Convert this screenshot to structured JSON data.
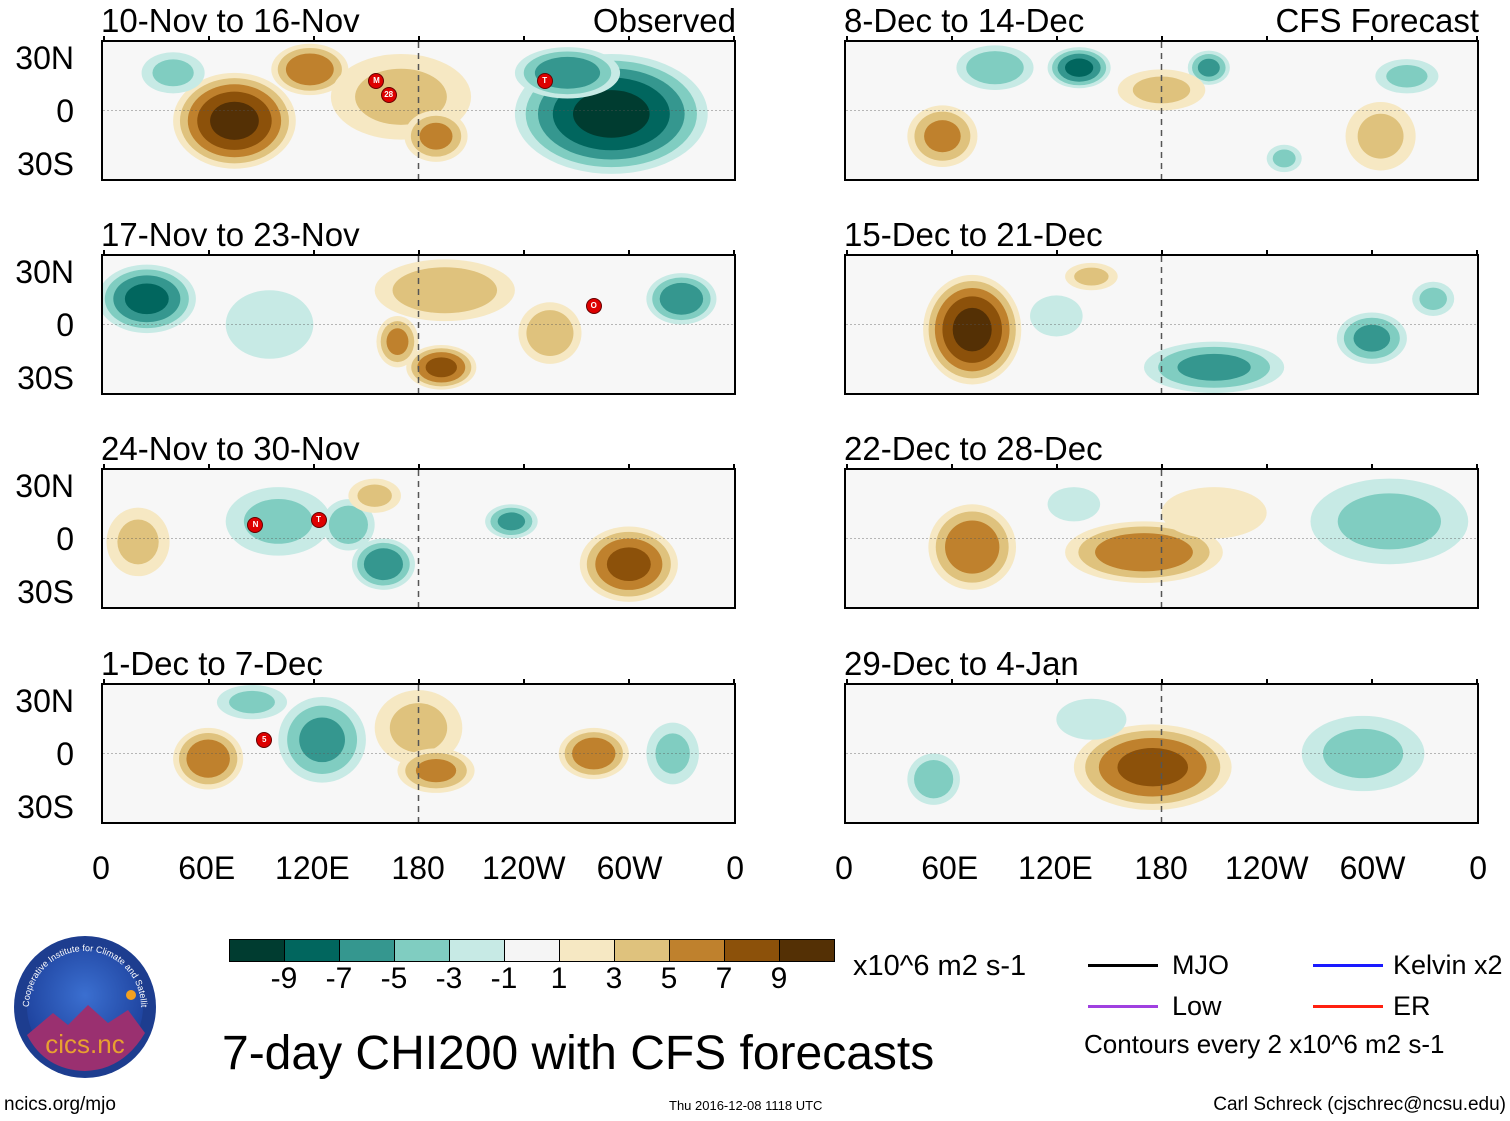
{
  "left_column": {
    "header_right": "Observed",
    "panels": [
      {
        "title": "10-Nov to 16-Nov",
        "storms": [
          {
            "label": "M",
            "lon": 156,
            "lat": 17
          },
          {
            "label": "28",
            "lon": 163,
            "lat": 9
          },
          {
            "label": "T",
            "lon": 252,
            "lat": 17
          }
        ],
        "anomalies": [
          {
            "lon": 75,
            "lat": -6,
            "value": 9,
            "rx": 35,
            "ry": 28
          },
          {
            "lon": 118,
            "lat": 24,
            "value": 6,
            "rx": 22,
            "ry": 15
          },
          {
            "lon": 170,
            "lat": 8,
            "value": 3,
            "rx": 40,
            "ry": 25
          },
          {
            "lon": 190,
            "lat": -15,
            "value": 5,
            "rx": 18,
            "ry": 15
          },
          {
            "lon": 290,
            "lat": -2,
            "value": -9,
            "rx": 55,
            "ry": 35
          },
          {
            "lon": 265,
            "lat": 22,
            "value": -6,
            "rx": 30,
            "ry": 15
          },
          {
            "lon": 40,
            "lat": 22,
            "value": -3,
            "rx": 18,
            "ry": 12
          }
        ]
      },
      {
        "title": "17-Nov to 23-Nov",
        "storms": [
          {
            "label": "O",
            "lon": 280,
            "lat": 11
          }
        ],
        "anomalies": [
          {
            "lon": 25,
            "lat": 15,
            "value": -7,
            "rx": 28,
            "ry": 20
          },
          {
            "lon": 195,
            "lat": 20,
            "value": 4,
            "rx": 40,
            "ry": 18
          },
          {
            "lon": 193,
            "lat": -25,
            "value": 7,
            "rx": 20,
            "ry": 13
          },
          {
            "lon": 168,
            "lat": -10,
            "value": 5,
            "rx": 12,
            "ry": 15
          },
          {
            "lon": 255,
            "lat": -5,
            "value": 4,
            "rx": 18,
            "ry": 18
          },
          {
            "lon": 330,
            "lat": 15,
            "value": -6,
            "rx": 20,
            "ry": 15
          },
          {
            "lon": 95,
            "lat": 0,
            "value": -2,
            "rx": 25,
            "ry": 20
          }
        ]
      },
      {
        "title": "24-Nov to 30-Nov",
        "storms": [
          {
            "label": "N",
            "lon": 87,
            "lat": 8
          },
          {
            "label": "T",
            "lon": 123,
            "lat": 11
          }
        ],
        "anomalies": [
          {
            "lon": 20,
            "lat": -2,
            "value": 3,
            "rx": 18,
            "ry": 20
          },
          {
            "lon": 100,
            "lat": 10,
            "value": -3,
            "rx": 30,
            "ry": 20
          },
          {
            "lon": 160,
            "lat": -15,
            "value": -6,
            "rx": 18,
            "ry": 15
          },
          {
            "lon": 140,
            "lat": 8,
            "value": -4,
            "rx": 15,
            "ry": 15
          },
          {
            "lon": 233,
            "lat": 10,
            "value": -5,
            "rx": 15,
            "ry": 10
          },
          {
            "lon": 300,
            "lat": -15,
            "value": 7,
            "rx": 28,
            "ry": 22
          },
          {
            "lon": 155,
            "lat": 25,
            "value": 3,
            "rx": 15,
            "ry": 10
          }
        ]
      },
      {
        "title": "1-Dec to 7-Dec",
        "storms": [
          {
            "label": "5",
            "lon": 92,
            "lat": 8
          }
        ],
        "anomalies": [
          {
            "lon": 60,
            "lat": -3,
            "value": 6,
            "rx": 20,
            "ry": 18
          },
          {
            "lon": 125,
            "lat": 8,
            "value": -5,
            "rx": 25,
            "ry": 25
          },
          {
            "lon": 180,
            "lat": 15,
            "value": 3,
            "rx": 25,
            "ry": 22
          },
          {
            "lon": 190,
            "lat": -10,
            "value": 5,
            "rx": 22,
            "ry": 13
          },
          {
            "lon": 280,
            "lat": 0,
            "value": 6,
            "rx": 20,
            "ry": 15
          },
          {
            "lon": 325,
            "lat": 0,
            "value": -3,
            "rx": 15,
            "ry": 18
          },
          {
            "lon": 85,
            "lat": 30,
            "value": -3,
            "rx": 20,
            "ry": 10
          }
        ]
      }
    ]
  },
  "right_column": {
    "header_right": "CFS Forecast",
    "panels": [
      {
        "title": "8-Dec to 14-Dec",
        "storms": [],
        "anomalies": [
          {
            "lon": 85,
            "lat": 25,
            "value": -4,
            "rx": 22,
            "ry": 13
          },
          {
            "lon": 133,
            "lat": 25,
            "value": -7,
            "rx": 18,
            "ry": 12
          },
          {
            "lon": 207,
            "lat": 25,
            "value": -5,
            "rx": 12,
            "ry": 10
          },
          {
            "lon": 55,
            "lat": -15,
            "value": 5,
            "rx": 20,
            "ry": 18
          },
          {
            "lon": 180,
            "lat": 12,
            "value": 3,
            "rx": 25,
            "ry": 12
          },
          {
            "lon": 305,
            "lat": -15,
            "value": 3,
            "rx": 20,
            "ry": 20
          },
          {
            "lon": 320,
            "lat": 20,
            "value": -3,
            "rx": 18,
            "ry": 10
          },
          {
            "lon": 250,
            "lat": -28,
            "value": -3,
            "rx": 10,
            "ry": 8
          }
        ]
      },
      {
        "title": "15-Dec to 21-Dec",
        "storms": [],
        "anomalies": [
          {
            "lon": 72,
            "lat": -3,
            "value": 9,
            "rx": 28,
            "ry": 32
          },
          {
            "lon": 210,
            "lat": -25,
            "value": -5,
            "rx": 40,
            "ry": 15
          },
          {
            "lon": 300,
            "lat": -8,
            "value": -5,
            "rx": 20,
            "ry": 15
          },
          {
            "lon": 120,
            "lat": 5,
            "value": -2,
            "rx": 15,
            "ry": 12
          },
          {
            "lon": 335,
            "lat": 15,
            "value": -3,
            "rx": 12,
            "ry": 10
          },
          {
            "lon": 140,
            "lat": 28,
            "value": 3,
            "rx": 15,
            "ry": 8
          }
        ]
      },
      {
        "title": "22-Dec to 28-Dec",
        "storms": [],
        "anomalies": [
          {
            "lon": 72,
            "lat": -5,
            "value": 6,
            "rx": 25,
            "ry": 25
          },
          {
            "lon": 170,
            "lat": -8,
            "value": 6,
            "rx": 45,
            "ry": 18
          },
          {
            "lon": 310,
            "lat": 10,
            "value": -3,
            "rx": 45,
            "ry": 25
          },
          {
            "lon": 210,
            "lat": 15,
            "value": 2,
            "rx": 30,
            "ry": 15
          },
          {
            "lon": 130,
            "lat": 20,
            "value": -2,
            "rx": 15,
            "ry": 10
          }
        ]
      },
      {
        "title": "29-Dec to 4-Jan",
        "storms": [],
        "anomalies": [
          {
            "lon": 175,
            "lat": -8,
            "value": 7,
            "rx": 45,
            "ry": 25
          },
          {
            "lon": 50,
            "lat": -15,
            "value": -4,
            "rx": 15,
            "ry": 15
          },
          {
            "lon": 295,
            "lat": 0,
            "value": -3,
            "rx": 35,
            "ry": 22
          },
          {
            "lon": 140,
            "lat": 20,
            "value": -2,
            "rx": 20,
            "ry": 12
          }
        ]
      }
    ]
  },
  "lat_labels": [
    "30N",
    "0",
    "30S"
  ],
  "lon_labels": [
    "0",
    "60E",
    "120E",
    "180",
    "120W",
    "60W",
    "0"
  ],
  "colorbar": {
    "colors": [
      "#003c30",
      "#01665e",
      "#35978f",
      "#80cdc1",
      "#c7eae5",
      "#f5f5f5",
      "#f6e8c3",
      "#dfc27d",
      "#bf812d",
      "#8c510a",
      "#543005"
    ],
    "labels": [
      "-9",
      "-7",
      "-5",
      "-3",
      "-1",
      "1",
      "3",
      "5",
      "7",
      "9"
    ],
    "units": "x10^6 m2 s-1"
  },
  "legend": {
    "items": [
      {
        "label": "MJO",
        "color": "#000000"
      },
      {
        "label": "Kelvin x2",
        "color": "#1a1aff"
      },
      {
        "label": "Low",
        "color": "#a040e0"
      },
      {
        "label": "ER",
        "color": "#ff2010"
      }
    ],
    "note": "Contours every 2 x10^6 m2 s-1"
  },
  "title": "7-day CHI200 with CFS forecasts",
  "logo_text": "cics.nc",
  "logo_ring_text": "Cooperative Institute for Climate and Satellites",
  "website": "ncics.org/mjo",
  "timestamp": "Thu 2016-12-08 1118 UTC",
  "author": "Carl Schreck (cjschrec@ncsu.edu)"
}
